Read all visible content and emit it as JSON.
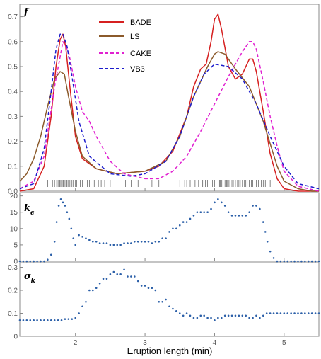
{
  "chart_data": {
    "type": "line",
    "xlabel": "Eruption length (min)",
    "xlim": [
      1.2,
      5.5
    ],
    "x_ticks": [
      "2",
      "3",
      "4",
      "5"
    ],
    "panels": [
      {
        "id": "density",
        "label_main": "f",
        "label_sub": "",
        "ylim": [
          0,
          0.75
        ],
        "y_ticks": [
          "0.0",
          "0.1",
          "0.2",
          "0.3",
          "0.4",
          "0.5",
          "0.6",
          "0.7"
        ],
        "legend": "top-center",
        "series": [
          {
            "name": "BADE",
            "color": "#d62020",
            "dash": "solid",
            "x": [
              1.2,
              1.4,
              1.55,
              1.65,
              1.72,
              1.78,
              1.82,
              1.86,
              1.92,
              2.0,
              2.1,
              2.3,
              2.6,
              3.0,
              3.2,
              3.4,
              3.6,
              3.7,
              3.8,
              3.88,
              3.95,
              4.0,
              4.05,
              4.1,
              4.2,
              4.3,
              4.4,
              4.5,
              4.55,
              4.6,
              4.7,
              4.8,
              4.9,
              5.0,
              5.2,
              5.5
            ],
            "y": [
              0.0,
              0.01,
              0.1,
              0.3,
              0.5,
              0.61,
              0.63,
              0.58,
              0.42,
              0.22,
              0.13,
              0.09,
              0.07,
              0.08,
              0.1,
              0.16,
              0.3,
              0.42,
              0.49,
              0.51,
              0.6,
              0.69,
              0.71,
              0.65,
              0.5,
              0.45,
              0.47,
              0.53,
              0.53,
              0.48,
              0.32,
              0.15,
              0.05,
              0.01,
              0.0,
              0.0
            ]
          },
          {
            "name": "LS",
            "color": "#8b5a2b",
            "dash": "solid",
            "x": [
              1.2,
              1.3,
              1.4,
              1.5,
              1.6,
              1.7,
              1.78,
              1.84,
              1.9,
              2.0,
              2.1,
              2.3,
              2.6,
              3.0,
              3.3,
              3.5,
              3.7,
              3.9,
              4.0,
              4.05,
              4.15,
              4.3,
              4.5,
              4.7,
              4.9,
              5.0,
              5.2,
              5.4,
              5.5
            ],
            "y": [
              0.04,
              0.07,
              0.13,
              0.22,
              0.34,
              0.45,
              0.48,
              0.47,
              0.38,
              0.24,
              0.14,
              0.09,
              0.07,
              0.08,
              0.12,
              0.22,
              0.38,
              0.5,
              0.55,
              0.56,
              0.55,
              0.49,
              0.42,
              0.28,
              0.1,
              0.04,
              0.01,
              0.0,
              0.0
            ]
          },
          {
            "name": "CAKE",
            "color": "#e020d0",
            "dash": "dashed",
            "x": [
              1.2,
              1.4,
              1.55,
              1.7,
              1.82,
              1.9,
              2.0,
              2.1,
              2.2,
              2.3,
              2.5,
              2.7,
              3.0,
              3.2,
              3.4,
              3.6,
              3.8,
              4.0,
              4.2,
              4.4,
              4.5,
              4.55,
              4.6,
              4.7,
              4.8,
              4.9,
              5.0,
              5.2,
              5.5
            ],
            "y": [
              0.01,
              0.04,
              0.14,
              0.42,
              0.6,
              0.56,
              0.42,
              0.32,
              0.28,
              0.22,
              0.12,
              0.07,
              0.05,
              0.05,
              0.08,
              0.14,
              0.24,
              0.35,
              0.46,
              0.56,
              0.6,
              0.6,
              0.57,
              0.44,
              0.3,
              0.18,
              0.08,
              0.02,
              0.0
            ]
          },
          {
            "name": "VB3",
            "color": "#1c1ccc",
            "dash": "dashed",
            "x": [
              1.2,
              1.4,
              1.55,
              1.65,
              1.72,
              1.78,
              1.82,
              1.88,
              1.95,
              2.05,
              2.2,
              2.5,
              2.8,
              3.0,
              3.3,
              3.5,
              3.7,
              3.85,
              4.0,
              4.2,
              4.4,
              4.6,
              4.8,
              5.0,
              5.2,
              5.5
            ],
            "y": [
              0.01,
              0.03,
              0.17,
              0.4,
              0.57,
              0.63,
              0.63,
              0.58,
              0.46,
              0.28,
              0.14,
              0.07,
              0.06,
              0.07,
              0.12,
              0.22,
              0.38,
              0.47,
              0.51,
              0.5,
              0.45,
              0.35,
              0.22,
              0.1,
              0.03,
              0.01
            ]
          }
        ],
        "rug": [
          1.6,
          1.67,
          1.7,
          1.73,
          1.75,
          1.77,
          1.78,
          1.8,
          1.8,
          1.82,
          1.83,
          1.85,
          1.87,
          1.88,
          1.9,
          1.92,
          1.95,
          1.97,
          2.0,
          2.02,
          2.07,
          2.1,
          2.17,
          2.2,
          2.27,
          2.33,
          2.37,
          2.42,
          2.5,
          2.67,
          2.72,
          2.8,
          2.9,
          3.1,
          3.2,
          3.33,
          3.43,
          3.5,
          3.57,
          3.6,
          3.65,
          3.72,
          3.77,
          3.82,
          3.83,
          3.87,
          3.9,
          3.92,
          3.95,
          3.97,
          4.0,
          4.02,
          4.05,
          4.07,
          4.08,
          4.1,
          4.12,
          4.15,
          4.17,
          4.18,
          4.2,
          4.22,
          4.25,
          4.27,
          4.3,
          4.33,
          4.35,
          4.37,
          4.4,
          4.43,
          4.45,
          4.47,
          4.5,
          4.53,
          4.55,
          4.58,
          4.6,
          4.63,
          4.67,
          4.7,
          4.73,
          4.8
        ]
      },
      {
        "id": "ke",
        "label_main": "k",
        "label_sub": "e",
        "ylim": [
          0,
          21
        ],
        "y_ticks": [
          "0",
          "5",
          "10",
          "15",
          "20"
        ],
        "color": "#2b5fa8",
        "x": [
          1.2,
          1.25,
          1.3,
          1.35,
          1.4,
          1.45,
          1.5,
          1.55,
          1.6,
          1.65,
          1.7,
          1.73,
          1.76,
          1.79,
          1.82,
          1.85,
          1.88,
          1.91,
          1.94,
          1.97,
          2.0,
          2.05,
          2.1,
          2.15,
          2.2,
          2.25,
          2.3,
          2.35,
          2.4,
          2.45,
          2.5,
          2.55,
          2.6,
          2.65,
          2.7,
          2.75,
          2.8,
          2.85,
          2.9,
          2.95,
          3.0,
          3.05,
          3.1,
          3.15,
          3.2,
          3.25,
          3.3,
          3.35,
          3.4,
          3.45,
          3.5,
          3.55,
          3.6,
          3.65,
          3.7,
          3.75,
          3.8,
          3.85,
          3.9,
          3.95,
          4.0,
          4.05,
          4.1,
          4.15,
          4.2,
          4.25,
          4.3,
          4.35,
          4.4,
          4.45,
          4.5,
          4.55,
          4.6,
          4.65,
          4.7,
          4.73,
          4.76,
          4.8,
          4.85,
          4.9,
          4.95,
          5.0,
          5.05,
          5.1,
          5.15,
          5.2,
          5.25,
          5.3,
          5.35,
          5.4,
          5.45,
          5.5
        ],
        "y": [
          0,
          0,
          0,
          0,
          0,
          0,
          0,
          0,
          0.5,
          2,
          6,
          12,
          17,
          19,
          18,
          17,
          15,
          13,
          10,
          7,
          5,
          8,
          7.5,
          7,
          6.5,
          6,
          6,
          5.5,
          5.5,
          5.5,
          5,
          5,
          5,
          5,
          5.5,
          5.5,
          5.5,
          6,
          6,
          6,
          6,
          6,
          5.5,
          6,
          6,
          7,
          7,
          9,
          10,
          10,
          11,
          12,
          12,
          13,
          14,
          15,
          15,
          15,
          15,
          16,
          18,
          19,
          18,
          17,
          15,
          14,
          14,
          14,
          14,
          14,
          15,
          17,
          17,
          16,
          12,
          9,
          6,
          3,
          1,
          0,
          0,
          0,
          0,
          0,
          0,
          0,
          0,
          0,
          0,
          0,
          0,
          0
        ]
      },
      {
        "id": "sigma",
        "label_main": "σ",
        "label_sub": "k",
        "ylim": [
          0,
          0.32
        ],
        "y_ticks": [
          "0",
          "0.1",
          "0.2",
          "0.3"
        ],
        "color": "#2b5fa8",
        "x": [
          1.2,
          1.25,
          1.3,
          1.35,
          1.4,
          1.45,
          1.5,
          1.55,
          1.6,
          1.65,
          1.7,
          1.75,
          1.8,
          1.85,
          1.9,
          1.95,
          2.0,
          2.05,
          2.1,
          2.15,
          2.2,
          2.25,
          2.3,
          2.35,
          2.4,
          2.45,
          2.5,
          2.55,
          2.6,
          2.65,
          2.7,
          2.75,
          2.8,
          2.85,
          2.9,
          2.95,
          3.0,
          3.05,
          3.1,
          3.15,
          3.2,
          3.25,
          3.3,
          3.35,
          3.4,
          3.45,
          3.5,
          3.55,
          3.6,
          3.65,
          3.7,
          3.75,
          3.8,
          3.85,
          3.9,
          3.95,
          4.0,
          4.05,
          4.1,
          4.15,
          4.2,
          4.25,
          4.3,
          4.35,
          4.4,
          4.45,
          4.5,
          4.55,
          4.6,
          4.65,
          4.7,
          4.75,
          4.8,
          4.85,
          4.9,
          4.95,
          5.0,
          5.05,
          5.1,
          5.15,
          5.2,
          5.25,
          5.3,
          5.35,
          5.4,
          5.45,
          5.5
        ],
        "y": [
          0.07,
          0.07,
          0.07,
          0.07,
          0.07,
          0.07,
          0.07,
          0.07,
          0.07,
          0.07,
          0.07,
          0.07,
          0.07,
          0.075,
          0.075,
          0.075,
          0.08,
          0.1,
          0.13,
          0.15,
          0.2,
          0.2,
          0.21,
          0.23,
          0.25,
          0.25,
          0.27,
          0.28,
          0.27,
          0.27,
          0.29,
          0.26,
          0.26,
          0.26,
          0.24,
          0.22,
          0.22,
          0.21,
          0.21,
          0.2,
          0.15,
          0.15,
          0.16,
          0.13,
          0.12,
          0.11,
          0.1,
          0.09,
          0.1,
          0.09,
          0.08,
          0.08,
          0.09,
          0.09,
          0.08,
          0.08,
          0.07,
          0.08,
          0.08,
          0.09,
          0.09,
          0.09,
          0.09,
          0.09,
          0.09,
          0.09,
          0.08,
          0.08,
          0.09,
          0.08,
          0.09,
          0.1,
          0.1,
          0.1,
          0.1,
          0.1,
          0.1,
          0.1,
          0.1,
          0.1,
          0.1,
          0.1,
          0.1,
          0.1,
          0.1,
          0.1,
          0.1
        ]
      }
    ]
  }
}
